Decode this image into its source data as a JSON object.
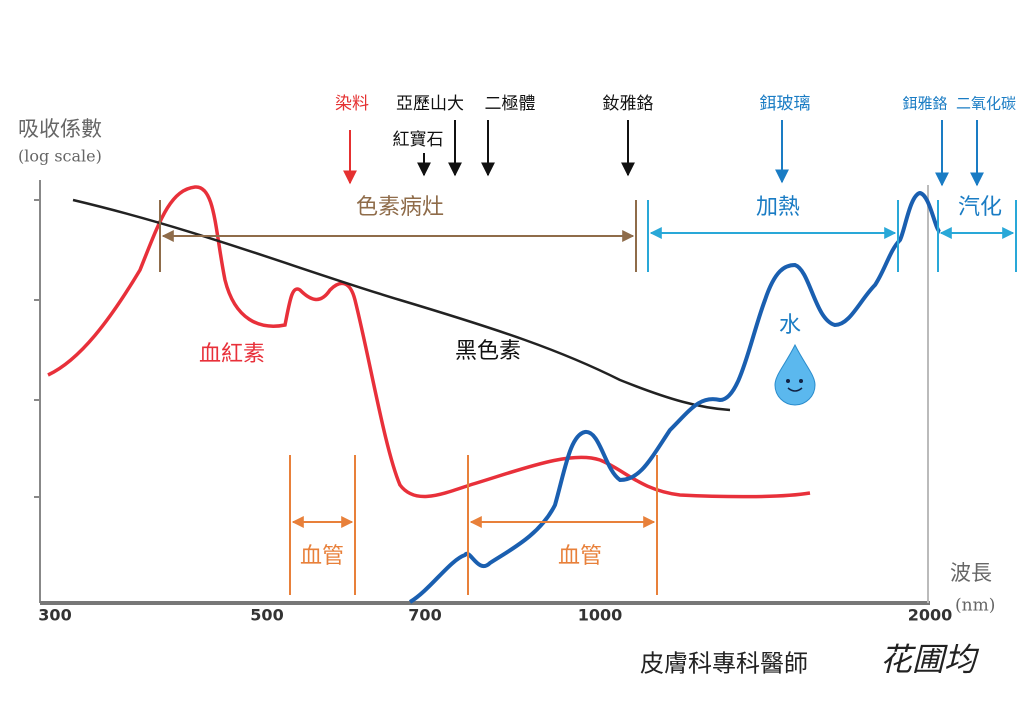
{
  "axes": {
    "y_label": "吸收係數",
    "y_note": "(log scale)",
    "x_ticks": [
      "300",
      "500",
      "700",
      "1000",
      "2000"
    ],
    "x_label": "波長",
    "x_unit": "(nm)"
  },
  "lasers": [
    {
      "label": "染料"
    },
    {
      "label": "亞歷山大"
    },
    {
      "label": "紅寶石"
    },
    {
      "label": "二極體"
    },
    {
      "label": "釹雅鉻"
    },
    {
      "label": "鉺玻璃"
    },
    {
      "label": "鉺雅鉻"
    },
    {
      "label": "二氧化碳"
    }
  ],
  "ranges": [
    {
      "label": "色素病灶"
    },
    {
      "label": "加熱"
    },
    {
      "label": "汽化"
    },
    {
      "label": "血管"
    },
    {
      "label": "血管"
    }
  ],
  "curves": [
    {
      "label": "血紅素"
    },
    {
      "label": "黑色素"
    },
    {
      "label": "水"
    }
  ],
  "signature": {
    "title": "皮膚科專科醫師",
    "name": "花圃均"
  }
}
